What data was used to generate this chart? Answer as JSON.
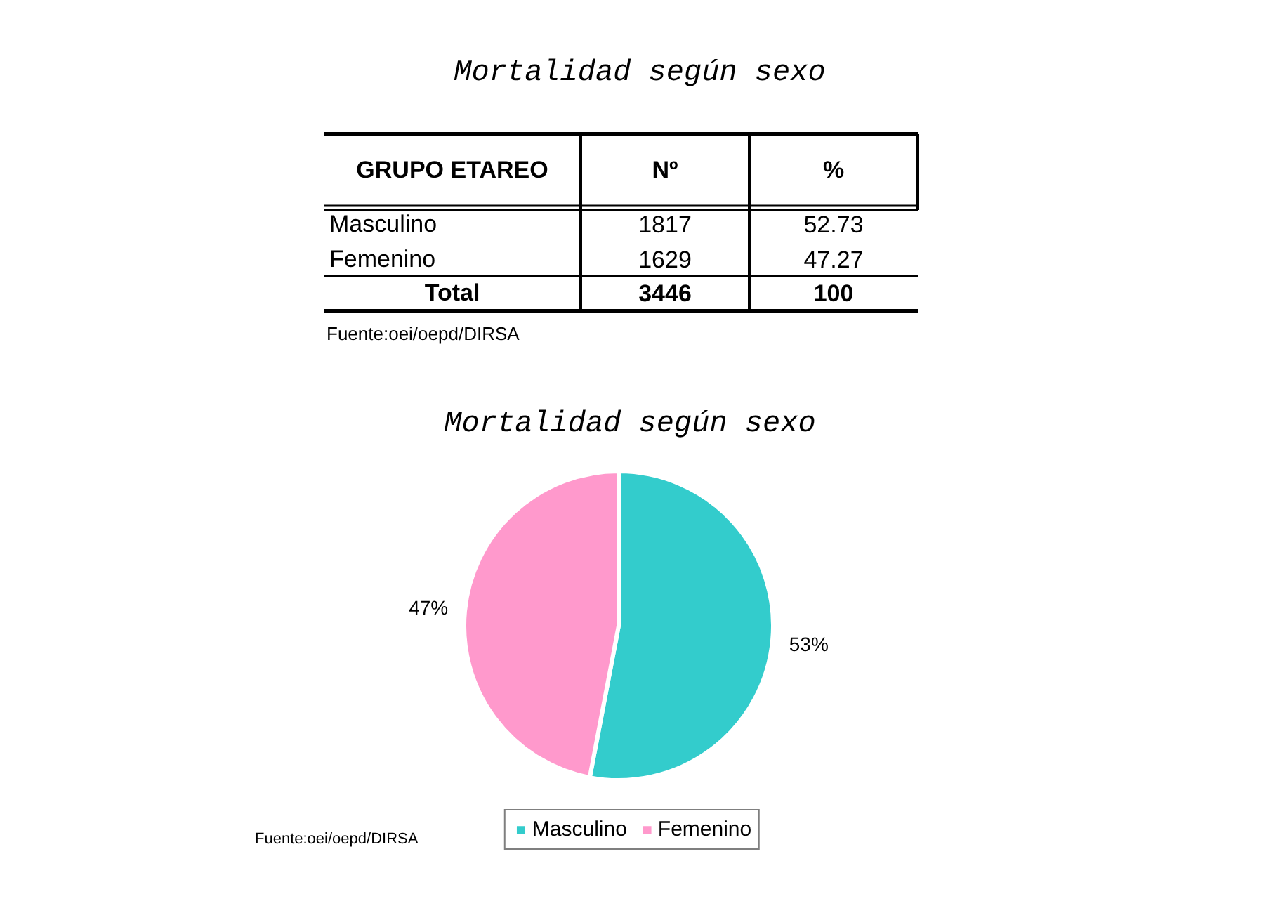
{
  "chart_data": [
    {
      "type": "other",
      "title": "Mortalidad según sexo",
      "xlabel": "GRUPO ETAREO",
      "categories": [
        "Masculino",
        "Femenino",
        "Total"
      ],
      "series": [
        {
          "name": "Nº",
          "values": [
            1817,
            1629,
            3446
          ]
        },
        {
          "name": "%",
          "values": [
            52.73,
            47.27,
            100
          ]
        }
      ],
      "data_labels": true,
      "annotations": [
        "Fuente:oei/oepd/DIRSA"
      ]
    },
    {
      "type": "pie",
      "title": "Mortalidad según sexo",
      "categories": [
        "Masculino",
        "Femenino"
      ],
      "values": [
        53,
        47
      ],
      "colors": [
        "#33cccc",
        "#ff99cc"
      ],
      "value_labels": [
        "53%",
        "47%"
      ],
      "legend": "bottom",
      "annotations": [
        "Fuente:oei/oepd/DIRSA"
      ]
    }
  ]
}
